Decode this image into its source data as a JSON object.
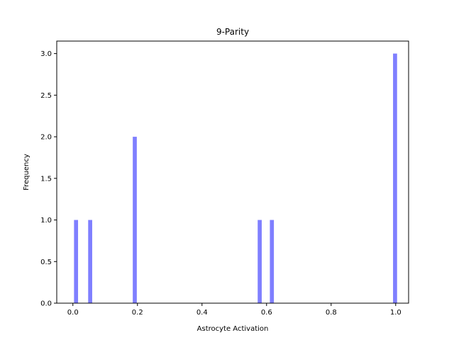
{
  "chart_data": {
    "type": "bar",
    "title": "9-Parity",
    "xlabel": "Astrocyte Activation",
    "ylabel": "Frequency",
    "xlim": [
      -0.05,
      1.04
    ],
    "ylim": [
      0,
      3.15
    ],
    "xticks": [
      "0.0",
      "0.2",
      "0.4",
      "0.6",
      "0.8",
      "1.0"
    ],
    "yticks": [
      "0.0",
      "0.5",
      "1.0",
      "1.5",
      "2.0",
      "2.5",
      "3.0"
    ],
    "bin_width": 0.0125,
    "color": "#7f7fff",
    "bars": [
      {
        "x": 0.0035,
        "value": 1
      },
      {
        "x": 0.0473,
        "value": 1
      },
      {
        "x": 0.1855,
        "value": 2
      },
      {
        "x": 0.5725,
        "value": 1
      },
      {
        "x": 0.6102,
        "value": 1
      },
      {
        "x": 0.9918,
        "value": 3
      }
    ],
    "grid": false
  }
}
